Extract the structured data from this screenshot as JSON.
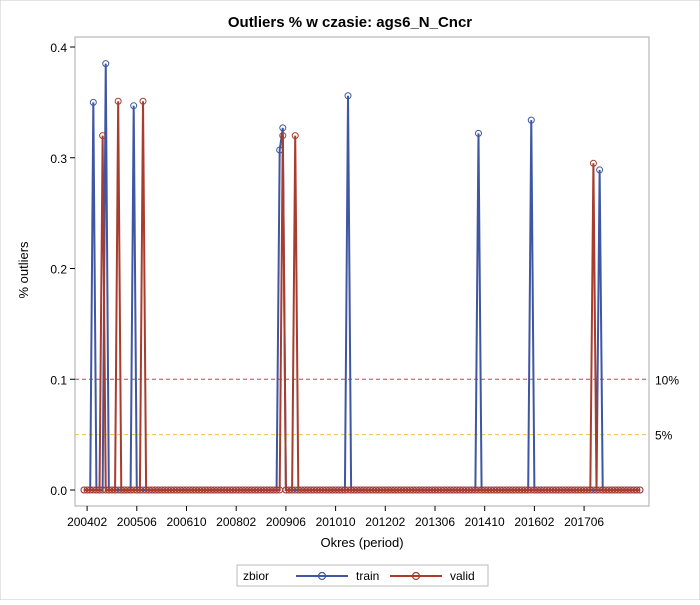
{
  "chart_data": {
    "type": "line",
    "title": "Outliers % w czasie: ags6_N_Cncr",
    "xlabel": "Okres (period)",
    "ylabel": "% outliers",
    "x_range": [
      "200401",
      "201812"
    ],
    "x_ticks": [
      "200402",
      "200506",
      "200610",
      "200802",
      "200906",
      "201010",
      "201202",
      "201306",
      "201410",
      "201602",
      "201706"
    ],
    "ylim": [
      0,
      0.4
    ],
    "y_ticks": [
      "0.0",
      "0.1",
      "0.2",
      "0.3",
      "0.4"
    ],
    "grid": false,
    "reference_lines": [
      {
        "label": "10%",
        "value": 0.1,
        "color": "#e8334a"
      },
      {
        "label": "5%",
        "value": 0.05,
        "color": "#f2c04a"
      }
    ],
    "legend": {
      "title": "zbior",
      "position": "bottom"
    },
    "series": [
      {
        "name": "train",
        "color": "#3f56a3",
        "default": 0,
        "peaks": [
          [
            "200404",
            0.35
          ],
          [
            "200408",
            0.385
          ],
          [
            "200505",
            0.347
          ],
          [
            "200904",
            0.307
          ],
          [
            "200905",
            0.327
          ],
          [
            "201102",
            0.356
          ],
          [
            "201408",
            0.322
          ],
          [
            "201601",
            0.334
          ],
          [
            "201711",
            0.289
          ]
        ]
      },
      {
        "name": "valid",
        "color": "#a83c2e",
        "default": 0,
        "peaks": [
          [
            "200407",
            0.32
          ],
          [
            "200412",
            0.351
          ],
          [
            "200508",
            0.351
          ],
          [
            "200905",
            0.32
          ],
          [
            "200909",
            0.32
          ],
          [
            "201709",
            0.295
          ]
        ]
      }
    ]
  }
}
